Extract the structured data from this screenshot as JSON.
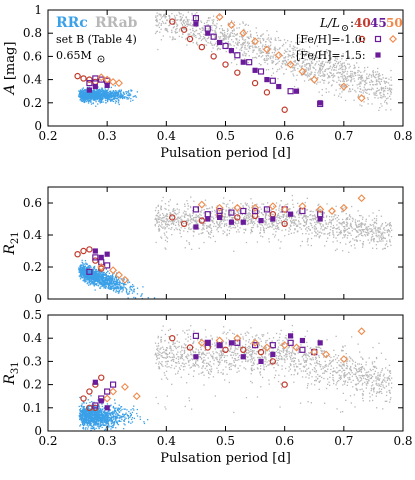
{
  "chart_data": [
    {
      "type": "scatter",
      "id": "A",
      "ylabel": "A",
      "ylabel_unit": "[mag]",
      "xlabel": "Pulsation period [d]",
      "xlim": [
        0.2,
        0.8
      ],
      "ylim": [
        0.0,
        1.0
      ],
      "x_ticks": [
        "0.2",
        "0.3",
        "0.4",
        "0.5",
        "0.6",
        "0.7",
        "0.8"
      ],
      "y_ticks": [
        "0",
        "0.2",
        "0.4",
        "0.6",
        "0.8",
        "1"
      ],
      "legend_labels": {
        "rrc": "RRc",
        "rrab": "RRab",
        "set": "set B (Table 4)",
        "mass": "0.65M",
        "lum_header": "L/L",
        "lum40": "40",
        "lum45": "45",
        "lum50": "50",
        "feh1": "[Fe/H]=-1.0:",
        "feh2": "[Fe/H]=-1.5:"
      },
      "background_clouds": {
        "rrc": {
          "x_range": [
            0.25,
            0.35
          ],
          "y_range": [
            0.15,
            0.35
          ],
          "center": [
            0.28,
            0.27
          ]
        },
        "rrab": {
          "x_range": [
            0.38,
            0.78
          ],
          "y_range": [
            0.05,
            0.95
          ],
          "trend": "decreasing amplitude with period"
        }
      },
      "series": [
        {
          "name": "40 [Fe/H]=-1.0",
          "points": [
            [
              0.25,
              0.43
            ],
            [
              0.26,
              0.41
            ],
            [
              0.27,
              0.4
            ],
            [
              0.28,
              0.38
            ],
            [
              0.41,
              0.9
            ],
            [
              0.43,
              0.83
            ],
            [
              0.44,
              0.75
            ],
            [
              0.46,
              0.68
            ],
            [
              0.48,
              0.6
            ],
            [
              0.5,
              0.53
            ],
            [
              0.52,
              0.46
            ],
            [
              0.55,
              0.37
            ],
            [
              0.57,
              0.29
            ],
            [
              0.6,
              0.14
            ]
          ]
        },
        {
          "name": "45 [Fe/H]=-1.0",
          "points": [
            [
              0.27,
              0.37
            ],
            [
              0.28,
              0.41
            ],
            [
              0.29,
              0.4
            ],
            [
              0.3,
              0.39
            ],
            [
              0.45,
              0.93
            ],
            [
              0.47,
              0.84
            ],
            [
              0.48,
              0.77
            ],
            [
              0.5,
              0.69
            ],
            [
              0.52,
              0.61
            ],
            [
              0.54,
              0.55
            ],
            [
              0.56,
              0.47
            ],
            [
              0.58,
              0.39
            ],
            [
              0.61,
              0.3
            ],
            [
              0.66,
              0.19
            ]
          ]
        },
        {
          "name": "50 [Fe/H]=-1.0",
          "points": [
            [
              0.29,
              0.42
            ],
            [
              0.3,
              0.4
            ],
            [
              0.31,
              0.38
            ],
            [
              0.32,
              0.37
            ],
            [
              0.49,
              0.94
            ],
            [
              0.51,
              0.87
            ],
            [
              0.53,
              0.8
            ],
            [
              0.55,
              0.73
            ],
            [
              0.57,
              0.66
            ],
            [
              0.59,
              0.61
            ],
            [
              0.61,
              0.53
            ],
            [
              0.63,
              0.47
            ],
            [
              0.65,
              0.4
            ],
            [
              0.7,
              0.34
            ],
            [
              0.73,
              0.24
            ]
          ]
        },
        {
          "name": "45 [Fe/H]=-1.5",
          "points": [
            [
              0.27,
              0.31
            ],
            [
              0.28,
              0.34
            ],
            [
              0.3,
              0.35
            ],
            [
              0.45,
              0.88
            ],
            [
              0.47,
              0.8
            ],
            [
              0.49,
              0.72
            ],
            [
              0.51,
              0.65
            ],
            [
              0.53,
              0.55
            ],
            [
              0.55,
              0.48
            ],
            [
              0.57,
              0.4
            ],
            [
              0.59,
              0.34
            ],
            [
              0.62,
              0.3
            ],
            [
              0.66,
              0.2
            ]
          ]
        }
      ]
    },
    {
      "type": "scatter",
      "id": "R21",
      "ylabel": "R",
      "ylabel_sub": "21",
      "xlabel": "",
      "xlim": [
        0.2,
        0.8
      ],
      "ylim": [
        0.0,
        0.7
      ],
      "x_ticks": [
        "",
        "",
        "",
        "",
        "",
        "",
        ""
      ],
      "y_ticks": [
        "0",
        "0.2",
        "0.4",
        "0.6"
      ],
      "background_clouds": {
        "rrc": {
          "x_range": [
            0.25,
            0.38
          ],
          "y_range": [
            0.0,
            0.22
          ],
          "trend": "decreasing with period"
        },
        "rrab": {
          "x_range": [
            0.38,
            0.78
          ],
          "y_range": [
            0.3,
            0.62
          ],
          "center": [
            0.55,
            0.5
          ]
        }
      },
      "series": [
        {
          "name": "40 [Fe/H]=-1.0",
          "points": [
            [
              0.25,
              0.28
            ],
            [
              0.26,
              0.3
            ],
            [
              0.27,
              0.31
            ],
            [
              0.28,
              0.24
            ],
            [
              0.29,
              0.19
            ],
            [
              0.41,
              0.51
            ],
            [
              0.43,
              0.47
            ],
            [
              0.46,
              0.49
            ],
            [
              0.49,
              0.52
            ],
            [
              0.52,
              0.51
            ],
            [
              0.55,
              0.52
            ],
            [
              0.58,
              0.53
            ],
            [
              0.6,
              0.47
            ]
          ]
        },
        {
          "name": "45 [Fe/H]=-1.0",
          "points": [
            [
              0.27,
              0.17
            ],
            [
              0.28,
              0.26
            ],
            [
              0.29,
              0.23
            ],
            [
              0.3,
              0.21
            ],
            [
              0.45,
              0.56
            ],
            [
              0.47,
              0.53
            ],
            [
              0.49,
              0.55
            ],
            [
              0.51,
              0.54
            ],
            [
              0.53,
              0.55
            ],
            [
              0.55,
              0.55
            ],
            [
              0.57,
              0.56
            ],
            [
              0.6,
              0.56
            ],
            [
              0.63,
              0.55
            ],
            [
              0.66,
              0.53
            ]
          ]
        },
        {
          "name": "50 [Fe/H]=-1.0",
          "points": [
            [
              0.29,
              0.2
            ],
            [
              0.31,
              0.18
            ],
            [
              0.32,
              0.15
            ],
            [
              0.33,
              0.12
            ],
            [
              0.46,
              0.59
            ],
            [
              0.49,
              0.57
            ],
            [
              0.52,
              0.57
            ],
            [
              0.55,
              0.57
            ],
            [
              0.58,
              0.58
            ],
            [
              0.6,
              0.56
            ],
            [
              0.63,
              0.58
            ],
            [
              0.66,
              0.56
            ],
            [
              0.68,
              0.55
            ],
            [
              0.7,
              0.57
            ],
            [
              0.73,
              0.63
            ]
          ]
        },
        {
          "name": "45 [Fe/H]=-1.5",
          "points": [
            [
              0.28,
              0.3
            ],
            [
              0.29,
              0.26
            ],
            [
              0.3,
              0.28
            ],
            [
              0.45,
              0.45
            ],
            [
              0.47,
              0.5
            ],
            [
              0.49,
              0.51
            ],
            [
              0.51,
              0.48
            ],
            [
              0.53,
              0.48
            ],
            [
              0.56,
              0.49
            ],
            [
              0.58,
              0.5
            ],
            [
              0.61,
              0.53
            ],
            [
              0.66,
              0.5
            ]
          ]
        }
      ]
    },
    {
      "type": "scatter",
      "id": "R31",
      "ylabel": "R",
      "ylabel_sub": "31",
      "xlabel": "Pulsation period [d]",
      "xlim": [
        0.2,
        0.8
      ],
      "ylim": [
        0.0,
        0.5
      ],
      "x_ticks": [
        "0.2",
        "0.3",
        "0.4",
        "0.5",
        "0.6",
        "0.7",
        "0.8"
      ],
      "y_ticks": [
        "0",
        "0.1",
        "0.2",
        "0.3",
        "0.4",
        "0.5"
      ],
      "background_clouds": {
        "rrc": {
          "x_range": [
            0.25,
            0.38
          ],
          "y_range": [
            0.0,
            0.13
          ],
          "center": [
            0.28,
            0.06
          ]
        },
        "rrab": {
          "x_range": [
            0.38,
            0.78
          ],
          "y_range": [
            0.05,
            0.45
          ],
          "center": [
            0.55,
            0.33
          ]
        }
      },
      "series": [
        {
          "name": "40 [Fe/H]=-1.0",
          "points": [
            [
              0.26,
              0.14
            ],
            [
              0.27,
              0.17
            ],
            [
              0.28,
              0.2
            ],
            [
              0.29,
              0.23
            ],
            [
              0.27,
              0.1
            ],
            [
              0.28,
              0.1
            ],
            [
              0.41,
              0.4
            ],
            [
              0.44,
              0.36
            ],
            [
              0.47,
              0.36
            ],
            [
              0.5,
              0.35
            ],
            [
              0.53,
              0.35
            ],
            [
              0.56,
              0.34
            ],
            [
              0.58,
              0.3
            ],
            [
              0.6,
              0.2
            ]
          ]
        },
        {
          "name": "45 [Fe/H]=-1.0",
          "points": [
            [
              0.28,
              0.11
            ],
            [
              0.29,
              0.14
            ],
            [
              0.3,
              0.17
            ],
            [
              0.31,
              0.2
            ],
            [
              0.45,
              0.41
            ],
            [
              0.47,
              0.38
            ],
            [
              0.49,
              0.37
            ],
            [
              0.52,
              0.38
            ],
            [
              0.55,
              0.37
            ],
            [
              0.58,
              0.37
            ],
            [
              0.61,
              0.38
            ],
            [
              0.63,
              0.35
            ],
            [
              0.65,
              0.34
            ]
          ]
        },
        {
          "name": "50 [Fe/H]=-1.0",
          "points": [
            [
              0.3,
              0.14
            ],
            [
              0.31,
              0.17
            ],
            [
              0.33,
              0.19
            ],
            [
              0.35,
              0.15
            ],
            [
              0.46,
              0.38
            ],
            [
              0.49,
              0.39
            ],
            [
              0.52,
              0.4
            ],
            [
              0.55,
              0.38
            ],
            [
              0.57,
              0.36
            ],
            [
              0.6,
              0.37
            ],
            [
              0.62,
              0.36
            ],
            [
              0.65,
              0.34
            ],
            [
              0.67,
              0.33
            ],
            [
              0.7,
              0.31
            ],
            [
              0.73,
              0.43
            ]
          ]
        },
        {
          "name": "45 [Fe/H]=-1.5",
          "points": [
            [
              0.28,
              0.21
            ],
            [
              0.29,
              0.13
            ],
            [
              0.3,
              0.1
            ],
            [
              0.45,
              0.32
            ],
            [
              0.47,
              0.38
            ],
            [
              0.49,
              0.37
            ],
            [
              0.51,
              0.38
            ],
            [
              0.53,
              0.32
            ],
            [
              0.56,
              0.3
            ],
            [
              0.58,
              0.33
            ],
            [
              0.61,
              0.41
            ],
            [
              0.63,
              0.39
            ],
            [
              0.66,
              0.38
            ]
          ]
        }
      ]
    }
  ],
  "colors": {
    "rrc": "#3aa0e8",
    "rrab": "#b8b8b8",
    "l40": "#c0392b",
    "l45": "#6a1b9a",
    "l50": "#f08a4b",
    "axis": "#000000"
  }
}
